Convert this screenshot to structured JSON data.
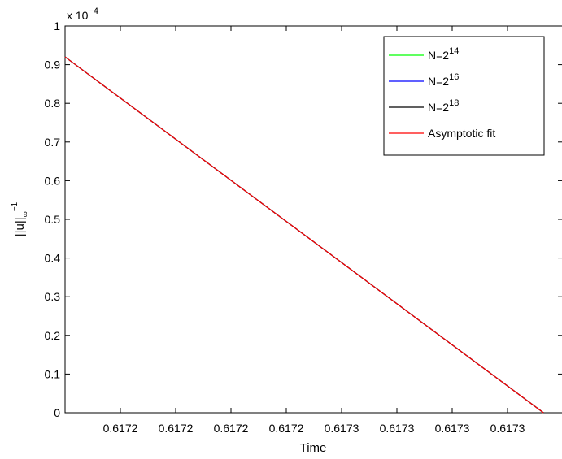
{
  "chart_data": {
    "type": "line",
    "xlabel": "Time",
    "ylabel": "||u||",
    "ylabel_sub": "∞",
    "ylabel_sup": "−1",
    "y_multiplier": "x 10",
    "y_multiplier_exp": "−4",
    "xlim": [
      0.61717,
      0.61735
    ],
    "ylim": [
      0,
      1
    ],
    "x_ticks": [
      0.61719,
      0.61721,
      0.61723,
      0.61725,
      0.61727,
      0.61729,
      0.61731,
      0.61733
    ],
    "x_tick_labels": [
      "0.6172",
      "0.6172",
      "0.6172",
      "0.6172",
      "0.6173",
      "0.6173",
      "0.6173",
      "0.6173"
    ],
    "y_ticks": [
      0,
      0.1,
      0.2,
      0.3,
      0.4,
      0.5,
      0.6,
      0.7,
      0.8,
      0.9,
      1
    ],
    "y_tick_labels": [
      "0",
      "0.1",
      "0.2",
      "0.3",
      "0.4",
      "0.5",
      "0.6",
      "0.7",
      "0.8",
      "0.9",
      "1"
    ],
    "grid": false,
    "legend_position": "top-right",
    "series": [
      {
        "name": "N=2",
        "name_sup": "14",
        "color": "#00ff00",
        "x": [
          0.61717,
          0.617343
        ],
        "y": [
          0.92,
          0
        ]
      },
      {
        "name": "N=2",
        "name_sup": "16",
        "color": "#0000ff",
        "x": [
          0.61717,
          0.617343
        ],
        "y": [
          0.92,
          0
        ]
      },
      {
        "name": "N=2",
        "name_sup": "18",
        "color": "#000000",
        "x": [
          0.61717,
          0.617343
        ],
        "y": [
          0.92,
          0
        ]
      },
      {
        "name": "Asymptotic fit",
        "name_sup": "",
        "color": "#ff0000",
        "x": [
          0.61717,
          0.617343
        ],
        "y": [
          0.92,
          0
        ]
      }
    ]
  }
}
